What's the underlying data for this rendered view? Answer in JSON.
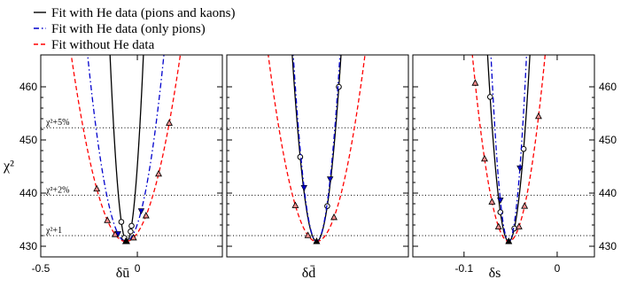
{
  "chart_data": {
    "type": "line",
    "ylabel": "χ²",
    "ylim": [
      428,
      466
    ],
    "yticks": [
      "430",
      "440",
      "450",
      "460"
    ],
    "thresholds": [
      {
        "label": "χ²+5%",
        "value": 452.3
      },
      {
        "label": "χ²+2%",
        "value": 439.6
      },
      {
        "label": "χ²+1",
        "value": 432
      }
    ],
    "legend": [
      {
        "label": "Fit with He data (pions and kaons)",
        "color": "#000000",
        "style": "solid"
      },
      {
        "label": "Fit with He data (only pions)",
        "color": "#0000cc",
        "style": "dashdot"
      },
      {
        "label": "Fit without He data",
        "color": "#ff0000",
        "style": "dashed"
      }
    ],
    "panels": [
      {
        "xlabel": "δū",
        "xlim": [
          -0.5,
          0.44
        ],
        "xticks": [
          {
            "v": -0.5,
            "label": "-0.5"
          },
          {
            "v": 0,
            "label": "0"
          }
        ],
        "series": [
          {
            "style": "solid",
            "center": -0.055,
            "k": 4700,
            "marker": "circle",
            "points": [
              -0.083,
              -0.067,
              -0.035,
              -0.03
            ]
          },
          {
            "style": "dashdot",
            "center": -0.06,
            "k": 900,
            "marker": "tri-down",
            "points": [
              -0.1,
              0.02
            ]
          },
          {
            "style": "dashed",
            "center": -0.06,
            "k": 440,
            "marker": "tri-up",
            "points": [
              -0.21,
              -0.155,
              -0.115,
              -0.02,
              0.045,
              0.11,
              0.165
            ]
          }
        ]
      },
      {
        "xlabel": "δd̄",
        "xlim": [
          -0.5,
          0.44
        ],
        "xticks": [],
        "series": [
          {
            "style": "solid",
            "center": -0.035,
            "k": 2200,
            "marker": "circle",
            "points": [
              -0.12,
              0.02,
              0.08
            ]
          },
          {
            "style": "dashdot",
            "center": -0.035,
            "k": 2400,
            "marker": "tri-down",
            "points": [
              -0.1,
              0.035
            ]
          },
          {
            "style": "dashed",
            "center": -0.035,
            "k": 560,
            "marker": "tri-up",
            "points": [
              -0.31,
              -0.145,
              -0.08,
              0.055,
              0.24,
              0.38
            ]
          }
        ]
      },
      {
        "xlabel": "δs",
        "xlim": [
          -0.155,
          0.04
        ],
        "xticks": [
          {
            "v": -0.1,
            "label": "-0.1"
          },
          {
            "v": 0,
            "label": "0"
          }
        ],
        "series": [
          {
            "style": "solid",
            "center": -0.052,
            "k": 68000,
            "marker": "circle",
            "points": [
              -0.072,
              -0.061,
              -0.046,
              -0.036
            ]
          },
          {
            "style": "dashdot",
            "center": -0.052,
            "k": 96000,
            "marker": "tri-down",
            "points": [
              -0.074,
              -0.061,
              -0.04,
              -0.031
            ]
          },
          {
            "style": "dashed",
            "center": -0.052,
            "k": 23000,
            "marker": "tri-up",
            "points": [
              -0.088,
              -0.078,
              -0.07,
              -0.063,
              -0.041,
              -0.035,
              -0.02
            ]
          }
        ]
      }
    ]
  }
}
